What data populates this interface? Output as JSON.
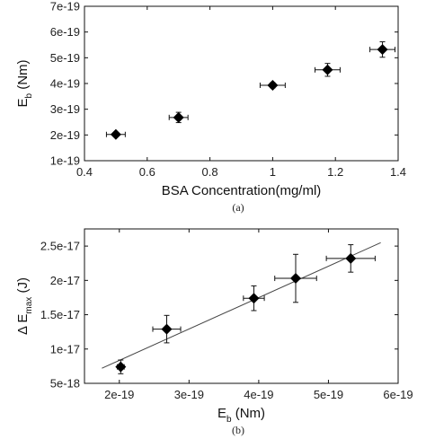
{
  "chart_data": [
    {
      "type": "scatter",
      "caption": "(a)",
      "xlabel": "BSA Concentration(mg/ml)",
      "ylabel_main": "E",
      "ylabel_sub": "b",
      "ylabel_unit": " (Nm)",
      "xlim": [
        0.4,
        1.4
      ],
      "ylim": [
        1e-19,
        7e-19
      ],
      "xticks": [
        0.4,
        0.6,
        0.8,
        1.0,
        1.2,
        1.4
      ],
      "xtick_labels": [
        "0.4",
        "0.6",
        "0.8",
        "1",
        "1.2",
        "1.4"
      ],
      "yticks": [
        1e-19,
        2e-19,
        3e-19,
        4e-19,
        5e-19,
        6e-19,
        7e-19
      ],
      "ytick_labels": [
        "1e-19",
        "2e-19",
        "3e-19",
        "4e-19",
        "5e-19",
        "6e-19",
        "7e-19"
      ],
      "grid": false,
      "marker": "diamond",
      "points": [
        {
          "x": 0.5,
          "y": 2.02e-19,
          "xerr": 0.03,
          "yerr": 5e-21
        },
        {
          "x": 0.7,
          "y": 2.68e-19,
          "xerr": 0.03,
          "yerr": 2e-20
        },
        {
          "x": 1.0,
          "y": 3.93e-19,
          "xerr": 0.04,
          "yerr": 1e-20
        },
        {
          "x": 1.175,
          "y": 4.53e-19,
          "xerr": 0.04,
          "yerr": 2.5e-20
        },
        {
          "x": 1.35,
          "y": 5.32e-19,
          "xerr": 0.04,
          "yerr": 3e-20
        }
      ]
    },
    {
      "type": "scatter",
      "caption": "(b)",
      "xlabel_main": "E",
      "xlabel_sub": "b",
      "xlabel_unit": " (Nm)",
      "ylabel_main": "Δ E",
      "ylabel_sub": "max",
      "ylabel_unit": " (J)",
      "xlim": [
        1.5e-19,
        6e-19
      ],
      "ylim": [
        5e-18,
        2.75e-17
      ],
      "xticks": [
        2e-19,
        3e-19,
        4e-19,
        5e-19,
        6e-19
      ],
      "xtick_labels": [
        "2e-19",
        "3e-19",
        "4e-19",
        "5e-19",
        "6e-19"
      ],
      "yticks": [
        5e-18,
        1e-17,
        1.5e-17,
        2e-17,
        2.5e-17
      ],
      "ytick_labels": [
        "5e-18",
        "1e-17",
        "1.5e-17",
        "2e-17",
        "2.5e-17"
      ],
      "grid": false,
      "marker": "diamond",
      "points": [
        {
          "x": 2.02e-19,
          "y": 7.4e-18,
          "xerr": 5e-21,
          "yerr": 1e-18
        },
        {
          "x": 2.68e-19,
          "y": 1.29e-17,
          "xerr": 2e-20,
          "yerr": 2e-18
        },
        {
          "x": 3.93e-19,
          "y": 1.74e-17,
          "xerr": 1.5e-20,
          "yerr": 1.8e-18
        },
        {
          "x": 4.53e-19,
          "y": 2.03e-17,
          "xerr": 3e-20,
          "yerr": 3.5e-18
        },
        {
          "x": 5.32e-19,
          "y": 2.32e-17,
          "xerr": 3.5e-20,
          "yerr": 2e-18
        }
      ],
      "fit_line": {
        "x": [
          1.75e-19,
          5.75e-19
        ],
        "y": [
          7.2e-18,
          2.55e-17
        ]
      }
    }
  ]
}
